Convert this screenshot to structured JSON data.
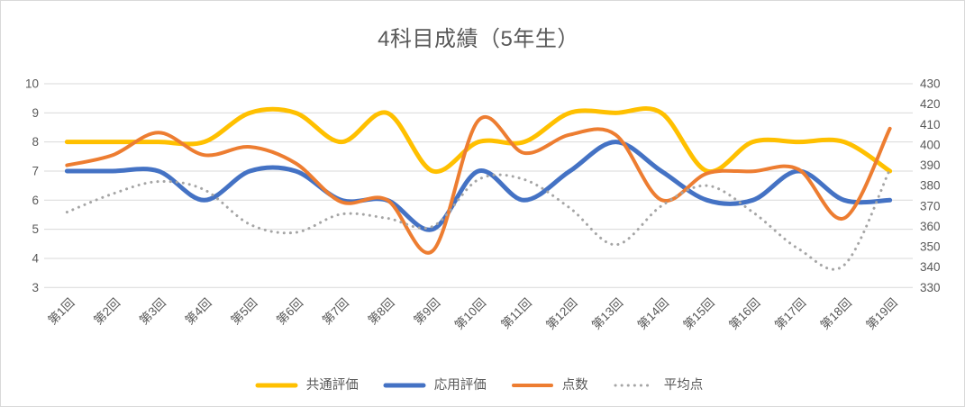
{
  "title": "4科目成績（5年生）",
  "chart_data": {
    "type": "line",
    "title": "4科目成績（5年生）",
    "categories": [
      "第1回",
      "第2回",
      "第3回",
      "第4回",
      "第5回",
      "第6回",
      "第7回",
      "第8回",
      "第9回",
      "第10回",
      "第11回",
      "第12回",
      "第13回",
      "第14回",
      "第15回",
      "第16回",
      "第17回",
      "第18回",
      "第19回"
    ],
    "left_axis": {
      "label": "",
      "min": 3,
      "max": 10,
      "ticks": [
        10,
        9,
        8,
        7,
        6,
        5,
        4,
        3
      ]
    },
    "right_axis": {
      "label": "",
      "min": 330,
      "max": 430,
      "ticks": [
        430,
        420,
        410,
        400,
        390,
        380,
        370,
        360,
        350,
        340,
        330
      ]
    },
    "grid": true,
    "legend_position": "bottom",
    "smoothing": true,
    "series": [
      {
        "id": "common-eval",
        "name": "共通評価",
        "axis": "left",
        "color": "#FFC000",
        "style": "solid",
        "width": 5,
        "values": [
          8,
          8,
          8,
          8,
          9,
          9,
          8,
          9,
          7,
          8,
          8,
          9,
          9,
          9,
          7,
          8,
          8,
          8,
          7
        ]
      },
      {
        "id": "applied-eval",
        "name": "応用評価",
        "axis": "left",
        "color": "#4472C4",
        "style": "solid",
        "width": 5,
        "values": [
          7,
          7,
          7,
          6,
          7,
          7,
          6,
          6,
          5,
          7,
          6,
          7,
          8,
          7,
          6,
          6,
          7,
          6,
          6
        ]
      },
      {
        "id": "score",
        "name": "点数",
        "axis": "right",
        "color": "#ED7D31",
        "style": "solid",
        "width": 4,
        "values": [
          390,
          395,
          406,
          395,
          399,
          391,
          372,
          373,
          348,
          412,
          396,
          405,
          405,
          373,
          386,
          387,
          388,
          364,
          408
        ]
      },
      {
        "id": "average",
        "name": "平均点",
        "axis": "right",
        "color": "#A5A5A5",
        "style": "dotted",
        "width": 3,
        "values": [
          367,
          376,
          382,
          378,
          361,
          357,
          366,
          364,
          360,
          383,
          383,
          369,
          351,
          370,
          380,
          367,
          349,
          341,
          388
        ]
      }
    ],
    "colors": {
      "grid": "#D9D9D9",
      "axis_text": "#595959",
      "title_text": "#595959",
      "frame_border": "#D9D9D9"
    }
  }
}
